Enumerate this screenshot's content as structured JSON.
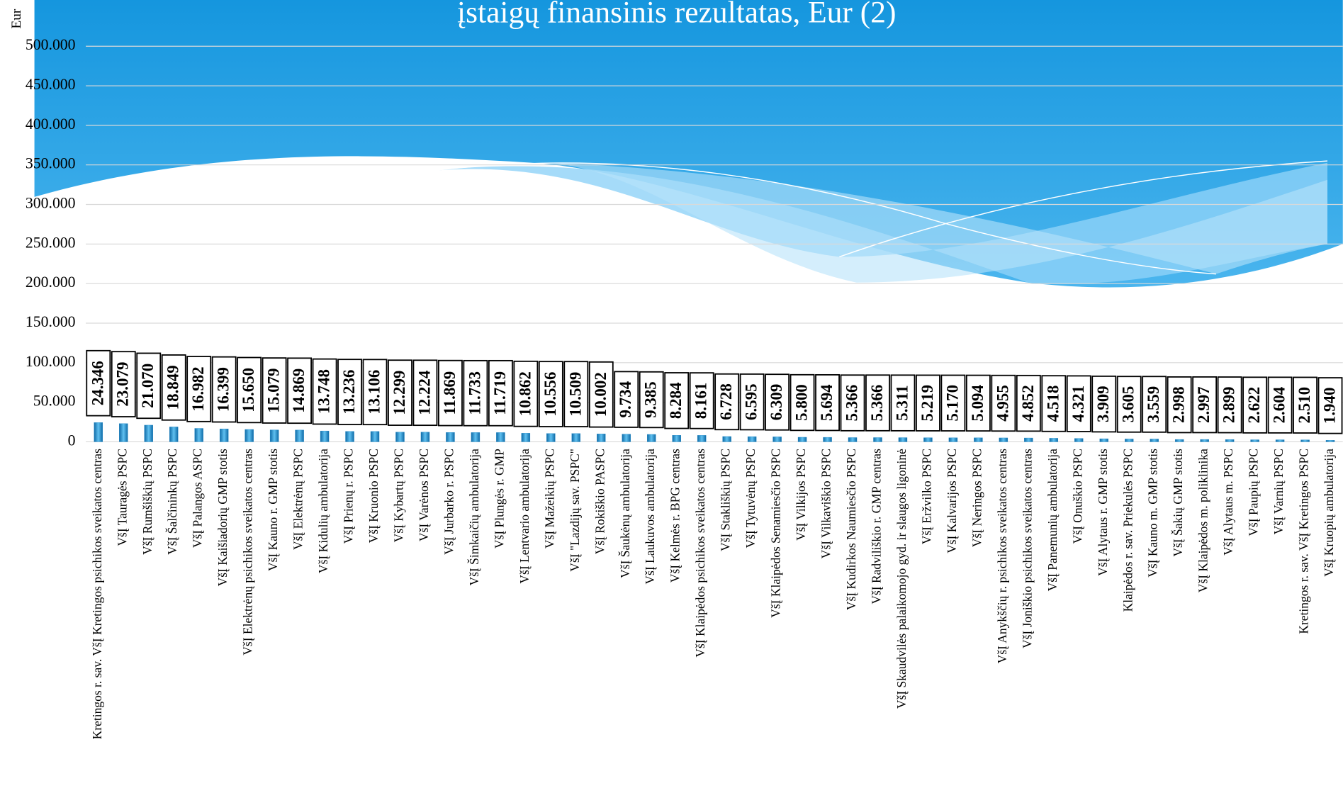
{
  "chart_data": {
    "type": "bar",
    "title": "įstaigų finansinis rezultatas, Eur (2)",
    "y_label": "Eur",
    "color": "#1e88c8",
    "categories": [
      "Kretingos r. sav. VšĮ Kretingos psichikos sveikatos centras",
      "VšĮ Tauragės PSPC",
      "VšĮ Rumšiškių PSPC",
      "VšĮ Šalčininkų PSPC",
      "VšĮ Palangos ASPC",
      "VšĮ Kaišiadorių GMP stotis",
      "VšĮ Elektrėnų psichikos sveikatos centras",
      "VšĮ Kauno r. GMP stotis",
      "VšĮ Elektrėnų PSPC",
      "VšĮ Kidulių ambulatorija",
      "VšĮ Prienų r. PSPC",
      "VšĮ Kruonio PSPC",
      "VšĮ Kybartų PSPC",
      "VšĮ Varėnos PSPC",
      "VšĮ Jurbarko r. PSPC",
      "VšĮ Šimkaičių ambulatorija",
      "VšĮ Plungės r. GMP",
      "VšĮ Lentvario ambulatorija",
      "VšĮ Mažeikių PSPC",
      "VšĮ \"Lazdijų sav. PSPC\"",
      "VšĮ Rokiškio PASPC",
      "VšĮ Šaukėnų ambulatorija",
      "VšĮ Laukuvos ambulatorija",
      "VšĮ Kelmės r. BPG centras",
      "VšĮ Klaipėdos psichikos sveikatos centras",
      "VšĮ Stakliškių PSPC",
      "VšĮ Tytuvėnų PSPC",
      "VšĮ Klaipėdos Senamiesčio PSPC",
      "VšĮ Vilkijos PSPC",
      "VšĮ Vilkaviškio PSPC",
      "VšĮ Kudirkos Naumiesčio PSPC",
      "VšĮ Radviliškio r. GMP centras",
      "VšĮ Skaudvilės palaikomojo gyd. ir slaugos ligoninė",
      "VšĮ Eržvilko PSPC",
      "VšĮ Kalvarijos PSPC",
      "VšĮ Neringos PSPC",
      "VšĮ Anykščių r. psichikos sveikatos centras",
      "VšĮ Joniškio psichikos sveikatos centras",
      "VšĮ Panemunių ambulatorija",
      "VšĮ Onuškio PSPC",
      "VšĮ Alytaus r. GMP stotis",
      "Klaipėdos r. sav. Priekulės PSPC",
      "VšĮ Kauno m. GMP stotis",
      "VšĮ Šakių GMP stotis",
      "VšĮ Klaipėdos m. poliklinika",
      "VšĮ Alytaus m. PSPC",
      "VšĮ Paupių PSPC",
      "VšĮ Varnių PSPC",
      "Kretingos r. sav. VšĮ Kretingos PSPC",
      "VšĮ Kruopių ambulatorija"
    ],
    "values": [
      24346,
      23079,
      21070,
      18849,
      16982,
      16399,
      15650,
      15079,
      14869,
      13748,
      13236,
      13106,
      12299,
      12224,
      11869,
      11733,
      11719,
      10862,
      10556,
      10509,
      10002,
      9734,
      9385,
      8284,
      8161,
      6728,
      6595,
      6309,
      5800,
      5694,
      5366,
      5366,
      5311,
      5219,
      5170,
      5094,
      4955,
      4852,
      4518,
      4321,
      3909,
      3605,
      3559,
      2998,
      2997,
      2899,
      2622,
      2604,
      2510,
      1940
    ],
    "value_labels": [
      "24.346",
      "23.079",
      "21.070",
      "18.849",
      "16.982",
      "16.399",
      "15.650",
      "15.079",
      "14.869",
      "13.748",
      "13.236",
      "13.106",
      "12.299",
      "12.224",
      "11.869",
      "11.733",
      "11.719",
      "10.862",
      "10.556",
      "10.509",
      "10.002",
      "9.734",
      "9.385",
      "8.284",
      "8.161",
      "6.728",
      "6.595",
      "6.309",
      "5.800",
      "5.694",
      "5.366",
      "5.366",
      "5.311",
      "5.219",
      "5.170",
      "5.094",
      "4.955",
      "4.852",
      "4.518",
      "4.321",
      "3.909",
      "3.605",
      "3.559",
      "2.998",
      "2.997",
      "2.899",
      "2.622",
      "2.604",
      "2.510",
      "1.940"
    ],
    "ylim": [
      0,
      500000
    ],
    "yticks": [
      0,
      {
        "value": 50000,
        "label": "50.000"
      },
      {
        "value": 100000,
        "label": "100.000"
      },
      {
        "value": 150000,
        "label": "150.000"
      },
      {
        "value": 200000,
        "label": "200.000"
      },
      {
        "value": 250000,
        "label": "250.000"
      },
      {
        "value": 300000,
        "label": "300.000"
      },
      {
        "value": 350000,
        "label": "350.000"
      },
      {
        "value": 400000,
        "label": "400.000"
      },
      {
        "value": 450000,
        "label": "450.000"
      },
      {
        "value": 500000,
        "label": "500.000"
      }
    ],
    "grid": true
  }
}
